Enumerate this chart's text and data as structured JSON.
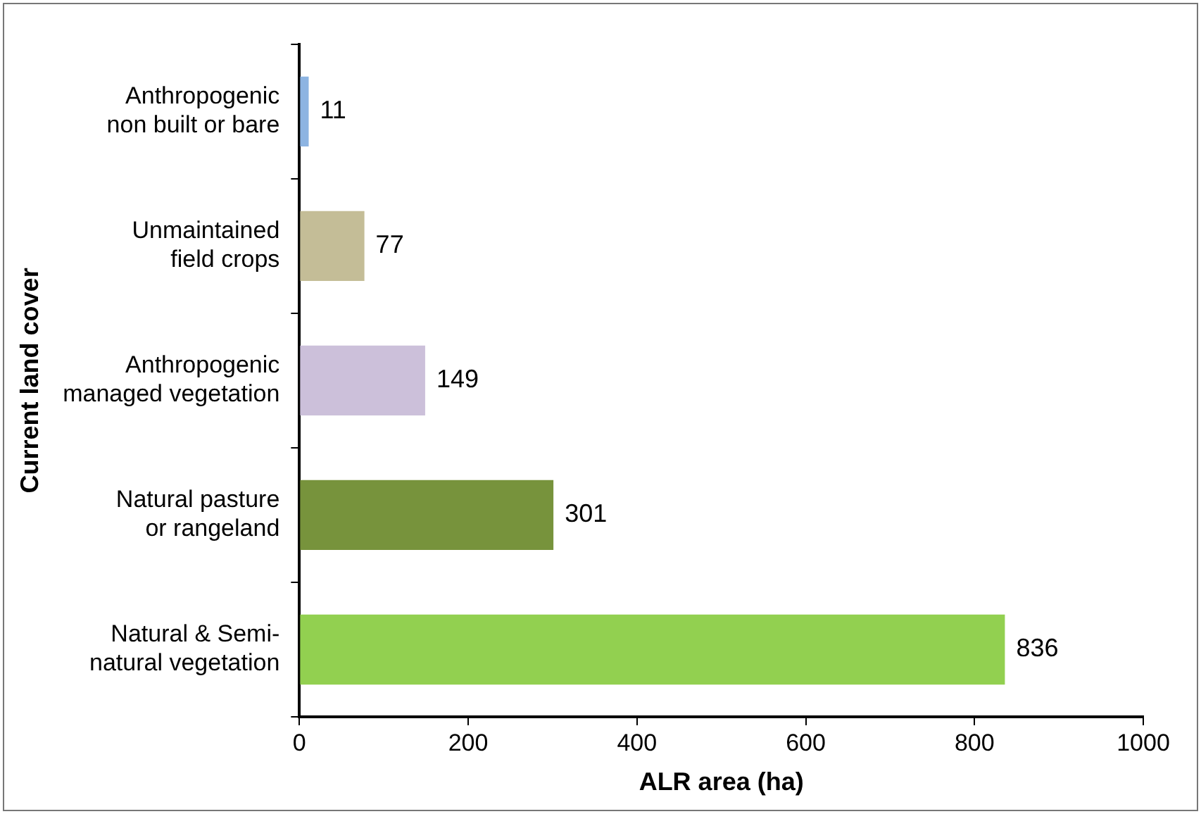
{
  "chart_data": {
    "type": "bar",
    "orientation": "horizontal",
    "xlabel": "ALR area (ha)",
    "ylabel": "Current land cover",
    "categories": [
      "Anthropogenic non built or bare",
      "Unmaintained field crops",
      "Anthropogenic managed vegetation",
      "Natural pasture or rangeland",
      "Natural & Semi-natural vegetation"
    ],
    "values": [
      11,
      77,
      149,
      301,
      836
    ],
    "colors": [
      "#8db4e2",
      "#c4bd97",
      "#ccc0da",
      "#77933c",
      "#92d050"
    ],
    "xlim": [
      0,
      1000
    ],
    "xticks": [
      0,
      200,
      400,
      600,
      800,
      1000
    ],
    "grid": false,
    "legend": false,
    "data_labels": true
  }
}
